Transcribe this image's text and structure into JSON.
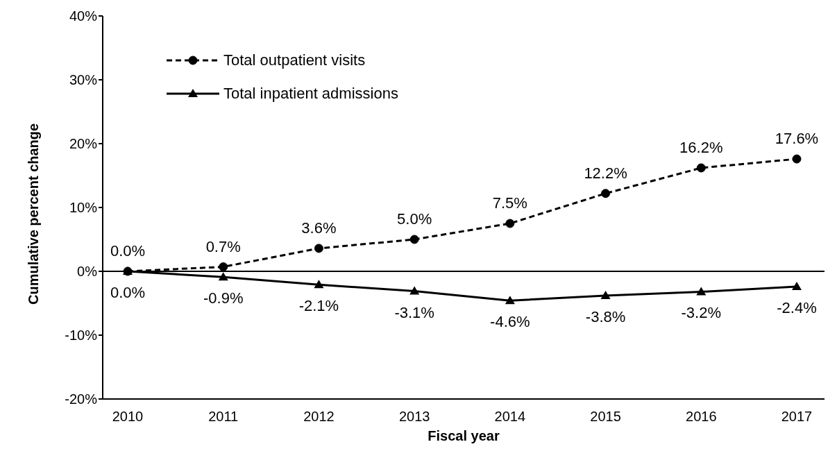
{
  "chart_data": {
    "type": "line",
    "xlabel": "Fiscal year",
    "ylabel": "Cumulative percent change",
    "categories": [
      "2010",
      "2011",
      "2012",
      "2013",
      "2014",
      "2015",
      "2016",
      "2017"
    ],
    "series": [
      {
        "name": "Total outpatient visits",
        "color": "#000000",
        "marker": "circle",
        "line_style": "dashed",
        "values": [
          0.0,
          0.7,
          3.6,
          5.0,
          7.5,
          12.2,
          16.2,
          17.6
        ],
        "value_labels": [
          "0.0%",
          "0.7%",
          "3.6%",
          "5.0%",
          "7.5%",
          "12.2%",
          "16.2%",
          "17.6%"
        ]
      },
      {
        "name": "Total inpatient admissions",
        "color": "#000000",
        "marker": "triangle",
        "line_style": "solid",
        "values": [
          0.0,
          -0.9,
          -2.1,
          -3.1,
          -4.6,
          -3.8,
          -3.2,
          -2.4
        ],
        "value_labels": [
          "0.0%",
          "-0.9%",
          "-2.1%",
          "-3.1%",
          "-4.6%",
          "-3.8%",
          "-3.2%",
          "-2.4%"
        ]
      }
    ],
    "ylim": [
      -20,
      40
    ],
    "yticks": [
      {
        "value": -20,
        "label": "-20%"
      },
      {
        "value": -10,
        "label": "-10%"
      },
      {
        "value": 0,
        "label": "0%"
      },
      {
        "value": 10,
        "label": "10%"
      },
      {
        "value": 20,
        "label": "20%"
      },
      {
        "value": 30,
        "label": "30%"
      },
      {
        "value": 40,
        "label": "40%"
      }
    ],
    "ref_lines": [
      {
        "axis": "y",
        "value": 0
      }
    ],
    "grid": false,
    "legend": "top left"
  }
}
